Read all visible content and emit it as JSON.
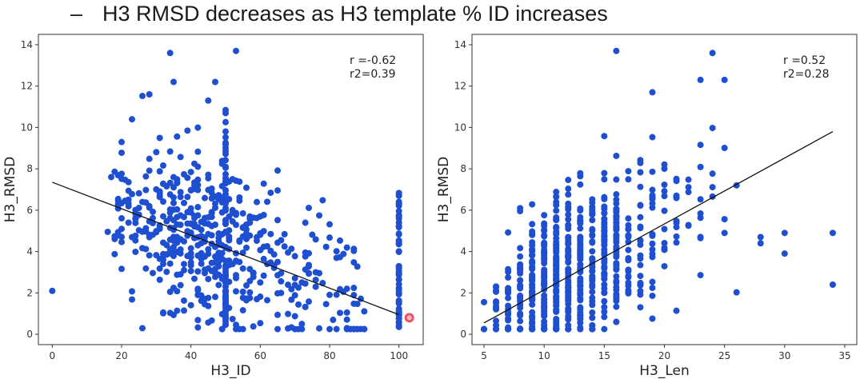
{
  "slide": {
    "bullet_dash": "–",
    "bullet_text": "H3 RMSD decreases as H3 template % ID increases"
  },
  "colors": {
    "point": "#1f4fd1",
    "fit_line": "#111111",
    "highlight": "#e8374a"
  },
  "chart_data": [
    {
      "type": "scatter",
      "title": "",
      "xlabel": "H3_ID",
      "ylabel": "H3_RMSD",
      "xlim": [
        -4,
        107
      ],
      "ylim": [
        -0.5,
        14.5
      ],
      "xticks": [
        0,
        20,
        40,
        60,
        80,
        100
      ],
      "yticks": [
        0,
        2,
        4,
        6,
        8,
        10,
        12,
        14
      ],
      "stats": [
        "r =-0.62",
        "r2=0.39"
      ],
      "fit_line": {
        "x": [
          0,
          100
        ],
        "y": [
          7.35,
          0.95
        ]
      },
      "highlight_point": {
        "x": 103,
        "y": 0.8
      },
      "generate": {
        "n": 520,
        "seed": 11,
        "dist": "identity",
        "columns": [
          50,
          100
        ],
        "column_count": 60,
        "outliers": [
          [
            0,
            2.1
          ],
          [
            34,
            13.6
          ],
          [
            53,
            13.7
          ],
          [
            47,
            12.2
          ],
          [
            35,
            12.2
          ],
          [
            28,
            11.6
          ],
          [
            45,
            11.3
          ]
        ]
      }
    },
    {
      "type": "scatter",
      "title": "",
      "xlabel": "H3_Len",
      "ylabel": "H3_RMSD",
      "xlim": [
        4,
        36
      ],
      "ylim": [
        -0.5,
        14.5
      ],
      "xticks": [
        5,
        10,
        15,
        20,
        25,
        30,
        35
      ],
      "yticks": [
        0,
        2,
        4,
        6,
        8,
        10,
        12,
        14
      ],
      "stats": [
        "r =0.52",
        "r2=0.28"
      ],
      "fit_line": {
        "x": [
          5,
          34
        ],
        "y": [
          0.55,
          9.8
        ]
      },
      "generate": {
        "n": 720,
        "seed": 23,
        "dist": "length",
        "outliers": [
          [
            16,
            13.7
          ],
          [
            24,
            13.6
          ],
          [
            34,
            4.9
          ],
          [
            34,
            2.4
          ],
          [
            30,
            4.9
          ],
          [
            30,
            3.9
          ],
          [
            28,
            4.7
          ],
          [
            28,
            4.4
          ],
          [
            26,
            7.2
          ],
          [
            23,
            12.3
          ],
          [
            25,
            12.3
          ],
          [
            19,
            11.7
          ]
        ]
      }
    }
  ]
}
